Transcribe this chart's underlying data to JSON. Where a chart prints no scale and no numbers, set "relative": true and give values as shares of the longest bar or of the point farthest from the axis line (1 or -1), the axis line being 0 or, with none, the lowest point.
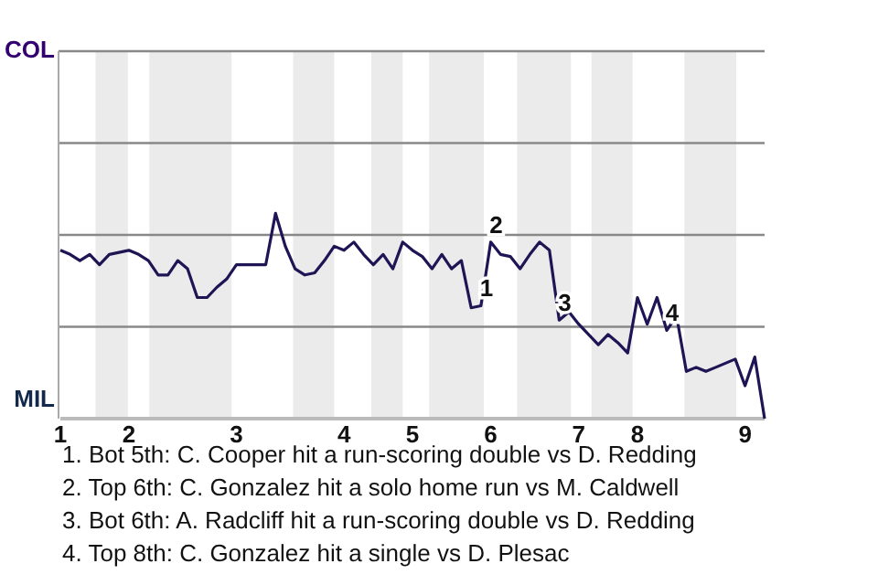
{
  "chart_data": {
    "type": "line",
    "relative": true,
    "marker": "none",
    "line_style": "solid",
    "categories": [
      "1",
      null,
      null,
      null,
      null,
      null,
      null,
      "2",
      null,
      null,
      null,
      null,
      null,
      null,
      null,
      null,
      null,
      null,
      "3",
      null,
      null,
      null,
      null,
      null,
      null,
      null,
      null,
      null,
      null,
      "4",
      null,
      null,
      null,
      null,
      null,
      null,
      "5",
      null,
      null,
      null,
      null,
      null,
      null,
      null,
      "6",
      null,
      null,
      null,
      null,
      null,
      null,
      null,
      null,
      "7",
      null,
      null,
      null,
      null,
      null,
      "8",
      null,
      null,
      null,
      null,
      null,
      null,
      null,
      null,
      null,
      null,
      "9",
      null,
      null
    ],
    "series": [
      {
        "color": "#1f1454",
        "values": [
          0.82,
          0.8,
          0.77,
          0.8,
          0.75,
          0.8,
          0.81,
          0.82,
          0.8,
          0.77,
          0.7,
          0.7,
          0.77,
          0.73,
          0.59,
          0.59,
          0.64,
          0.68,
          0.75,
          0.75,
          0.75,
          0.75,
          1,
          0.84,
          0.73,
          0.7,
          0.71,
          0.77,
          0.84,
          0.82,
          0.86,
          0.8,
          0.75,
          0.8,
          0.73,
          0.86,
          0.82,
          0.79,
          0.73,
          0.8,
          0.73,
          0.77,
          0.54,
          0.55,
          0.86,
          0.8,
          0.79,
          0.73,
          0.8,
          0.86,
          0.82,
          0.48,
          0.52,
          0.46,
          0.41,
          0.36,
          0.41,
          0.37,
          0.32,
          0.59,
          0.46,
          0.59,
          0.43,
          0.5,
          0.23,
          0.25,
          0.23,
          0.25,
          0.27,
          0.29,
          0.16,
          0.3,
          0
        ]
      }
    ],
    "ref_lines": [
      {
        "axis": "y",
        "value": 0.4475,
        "color": "#888888"
      },
      {
        "axis": "y",
        "value": 0.895,
        "color": "#888888"
      },
      {
        "axis": "y",
        "value": 1.3425,
        "color": "#888888"
      },
      {
        "axis": "y",
        "value": 1.79,
        "color": "#888888"
      }
    ],
    "annotations": [
      "COL",
      "MIL",
      {
        "text": "1",
        "y": 0.55
      },
      {
        "text": "2",
        "y": 0.86
      },
      {
        "text": "3",
        "y": 0.48
      },
      {
        "text": "4",
        "y": 0.43
      },
      "1. Bot 5th: C. Cooper hit a run-scoring double vs D. Redding",
      "2. Top 6th: C. Gonzalez hit a solo home run vs M. Caldwell",
      "3. Bot 6th: A. Radcliff hit a run-scoring double vs D. Redding",
      "4. Top 8th: C. Gonzalez hit a single vs D. Plesac"
    ]
  }
}
